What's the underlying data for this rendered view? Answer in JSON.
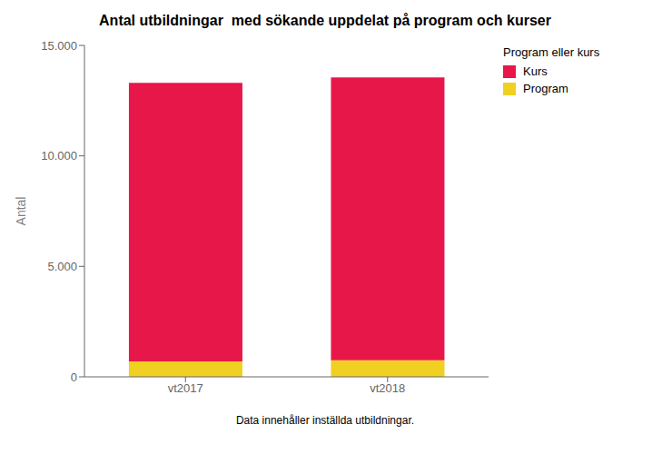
{
  "chart_data": {
    "type": "bar",
    "title": "Antal utbildningar  med sökande uppdelat på program och kurser",
    "ylabel": "Antal",
    "categories": [
      "vt2017",
      "vt2018"
    ],
    "stacked": true,
    "series": [
      {
        "name": "Program",
        "color": "#F0D020",
        "values": [
          700,
          750
        ]
      },
      {
        "name": "Kurs",
        "color": "#E8174A",
        "values": [
          12600,
          12800
        ]
      }
    ],
    "ylim": [
      0,
      15000
    ],
    "yticks": [
      0,
      {
        "value": 5000,
        "label": "5.000"
      },
      {
        "value": 10000,
        "label": "10.000"
      },
      {
        "value": 15000,
        "label": "15.000"
      }
    ],
    "grid": false,
    "legend": "upper right",
    "legend_title": "Program eller kurs",
    "footnote": "Data innehåller inställda utbildningar."
  }
}
